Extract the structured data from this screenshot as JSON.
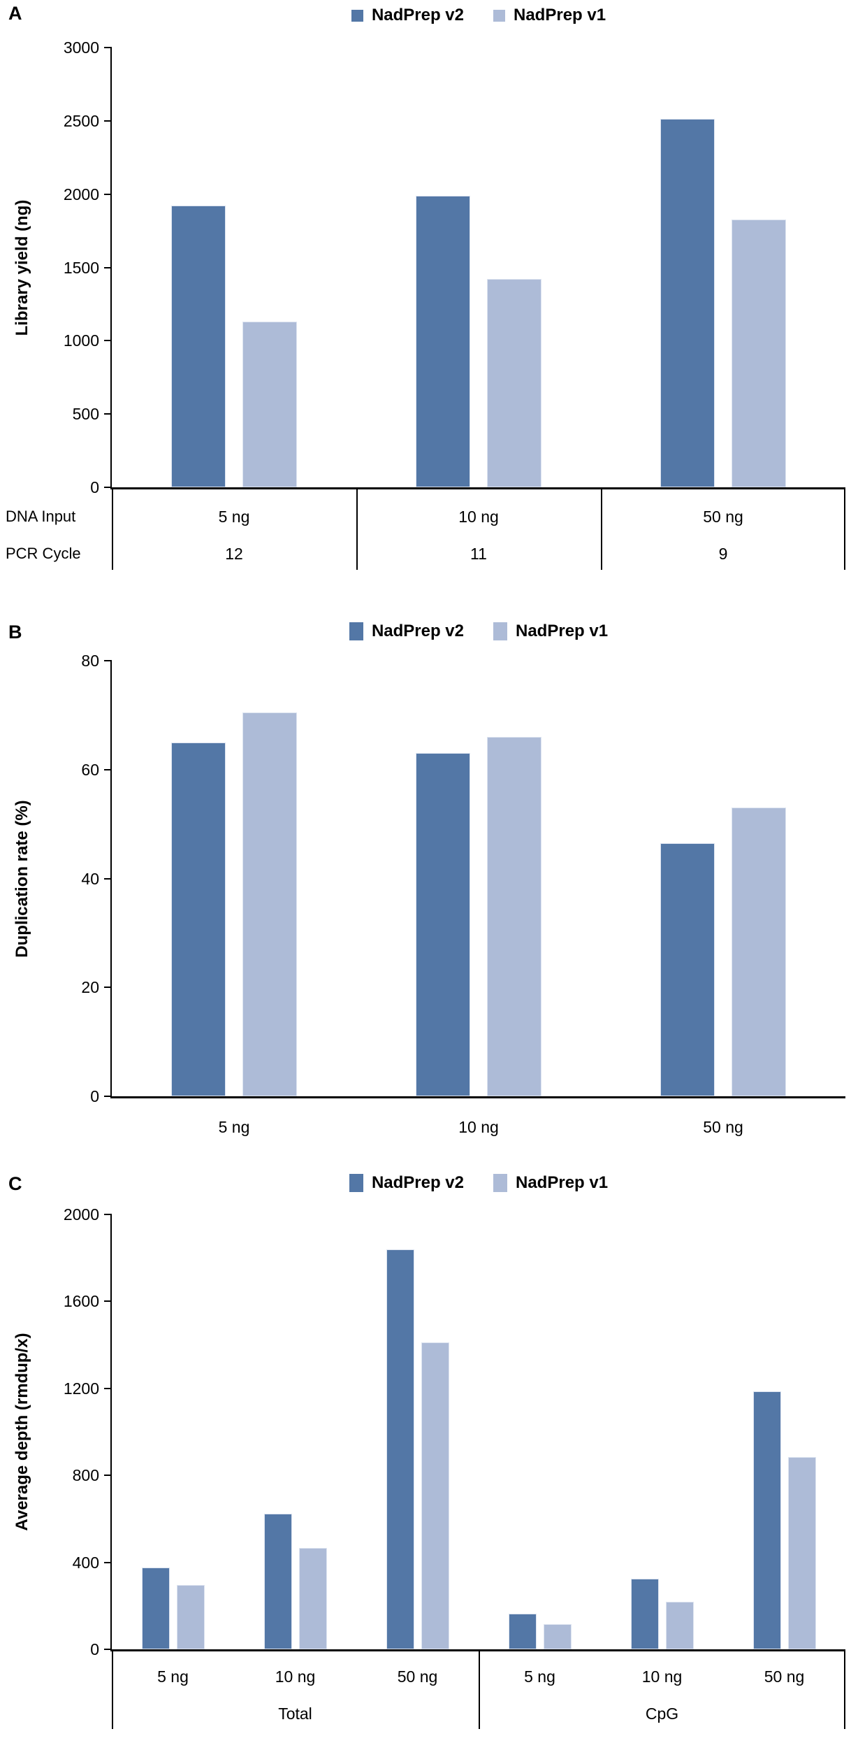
{
  "colors": {
    "nadprep_v2": "#5377a6",
    "nadprep_v1": "#adbbd7"
  },
  "chart_data": [
    {
      "panel": "A",
      "type": "bar",
      "ylabel": "Library yield (ng)",
      "ylim": [
        0,
        3000
      ],
      "yticks": [
        3000,
        2500,
        2000,
        1500,
        1000,
        500,
        0
      ],
      "grid": false,
      "legend_position": "top-center",
      "legend": [
        "NadPrep v2",
        "NadPrep v1"
      ],
      "categories": [
        "5 ng",
        "10 ng",
        "50 ng"
      ],
      "series": [
        {
          "name": "NadPrep v2",
          "values": [
            1920,
            1990,
            2515
          ]
        },
        {
          "name": "NadPrep v1",
          "values": [
            1130,
            1420,
            1825
          ]
        }
      ],
      "x_table": {
        "rows": [
          {
            "header": "DNA Input",
            "values": [
              "5 ng",
              "10 ng",
              "50 ng"
            ]
          },
          {
            "header": "PCR Cycle",
            "values": [
              "12",
              "11",
              "9"
            ]
          }
        ]
      }
    },
    {
      "panel": "B",
      "type": "bar",
      "ylabel": "Duplication rate (%)",
      "ylim": [
        0,
        80
      ],
      "yticks": [
        80,
        60,
        40,
        20,
        0
      ],
      "grid": false,
      "legend_position": "top-center",
      "legend": [
        "NadPrep v2",
        "NadPrep v1"
      ],
      "categories": [
        "5 ng",
        "10 ng",
        "50 ng"
      ],
      "series": [
        {
          "name": "NadPrep v2",
          "values": [
            65,
            63,
            46.5
          ]
        },
        {
          "name": "NadPrep v1",
          "values": [
            70.5,
            66,
            53
          ]
        }
      ]
    },
    {
      "panel": "C",
      "type": "bar",
      "ylabel": "Average depth (rmdup/x)",
      "ylim": [
        0,
        2000
      ],
      "yticks": [
        2000,
        1600,
        1200,
        800,
        400,
        0
      ],
      "grid": false,
      "legend_position": "top-center",
      "legend": [
        "NadPrep v2",
        "NadPrep v1"
      ],
      "categories": [
        "5 ng",
        "10 ng",
        "50 ng",
        "5 ng",
        "10 ng",
        "50 ng"
      ],
      "groups": [
        {
          "label": "Total",
          "span": 3
        },
        {
          "label": "CpG",
          "span": 3
        }
      ],
      "series": [
        {
          "name": "NadPrep v2",
          "values": [
            375,
            625,
            1840,
            165,
            325,
            1185
          ]
        },
        {
          "name": "NadPrep v1",
          "values": [
            295,
            465,
            1410,
            115,
            220,
            885
          ]
        }
      ]
    }
  ]
}
